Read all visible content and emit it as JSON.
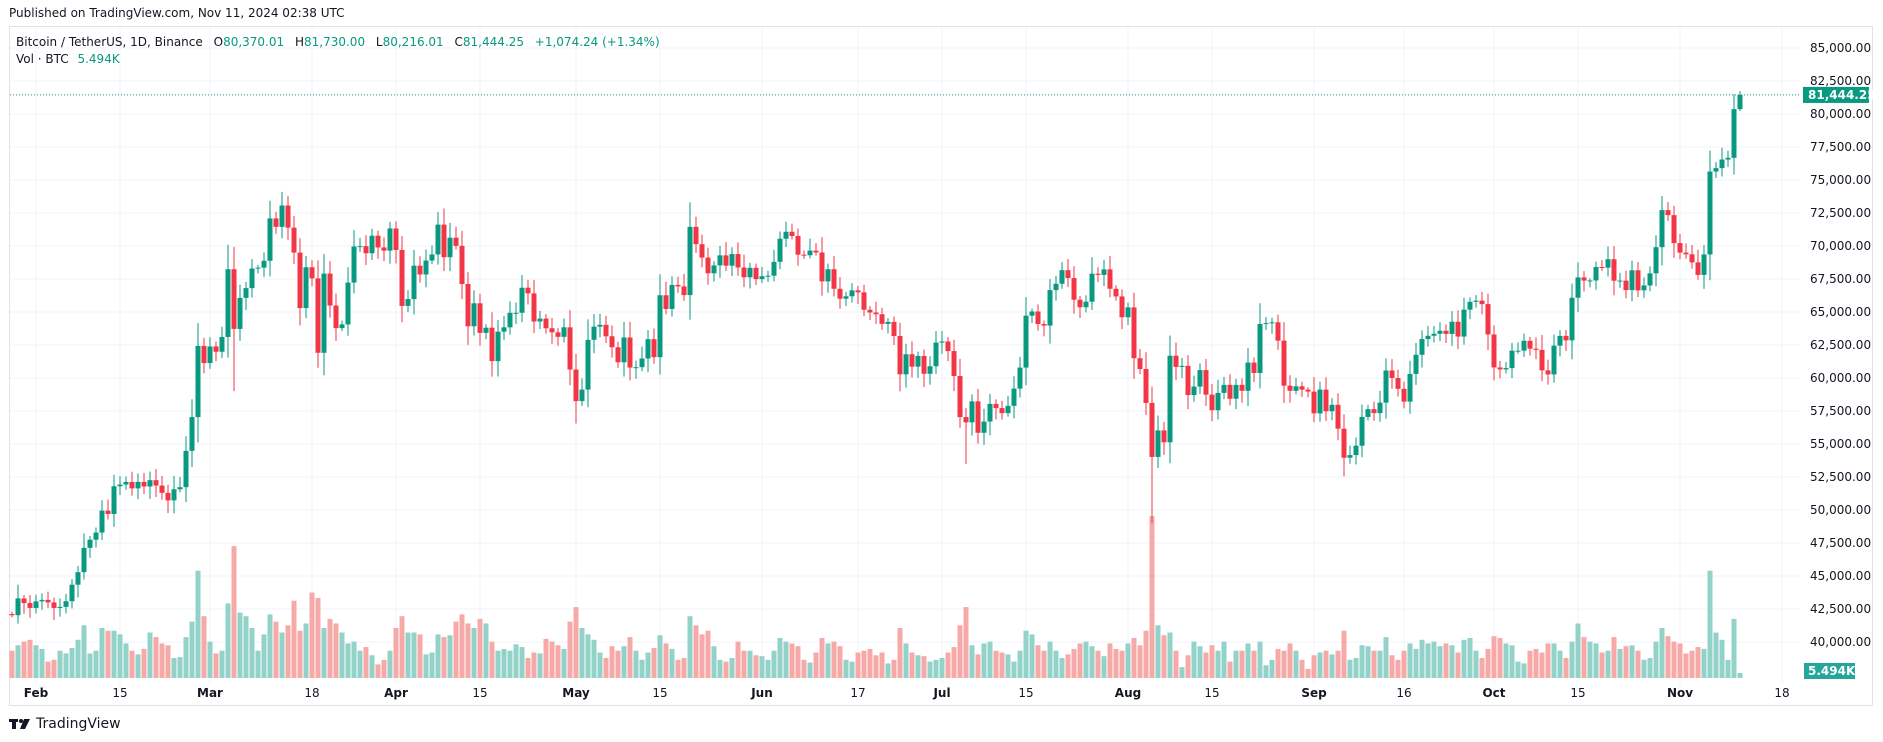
{
  "published": "Published on TradingView.com, Nov 11, 2024 02:38 UTC",
  "legend": {
    "symbol": "Bitcoin / TetherUS, 1D, Binance",
    "o_label": "O",
    "o": "80,370.01",
    "h_label": "H",
    "h": "81,730.00",
    "l_label": "L",
    "l": "80,216.01",
    "c_label": "C",
    "c": "81,444.25",
    "change": "+1,074.24 (+1.34%)"
  },
  "vol_legend": {
    "label": "Vol · BTC",
    "value": "5.494K"
  },
  "price_tag": "81,444.25",
  "volume_tag": "5.494K",
  "logo": "TradingView",
  "colors": {
    "up": "#089981",
    "down": "#F23645",
    "vol_up": "#92d2c8",
    "vol_down": "#f7a9a7",
    "grid": "#f0f3fa"
  },
  "chart_data": {
    "type": "candlestick",
    "title": "Bitcoin / TetherUS, 1D, Binance",
    "start_date": "2024-01-28",
    "end_date": "2024-11-11",
    "ylim": [
      38000,
      86000
    ],
    "y_ticks": [
      "85,000.00",
      "82,500.00",
      "80,000.00",
      "77,500.00",
      "75,000.00",
      "72,500.00",
      "70,000.00",
      "67,500.00",
      "65,000.00",
      "62,500.00",
      "60,000.00",
      "57,500.00",
      "55,000.00",
      "52,500.00",
      "50,000.00",
      "47,500.00",
      "45,000.00",
      "42,500.00",
      "40,000.00"
    ],
    "x_ticks": [
      {
        "label": "Feb",
        "day": 4,
        "month": true
      },
      {
        "label": "15",
        "day": 18
      },
      {
        "label": "Mar",
        "day": 33,
        "month": true
      },
      {
        "label": "18",
        "day": 50
      },
      {
        "label": "Apr",
        "day": 64,
        "month": true
      },
      {
        "label": "15",
        "day": 78
      },
      {
        "label": "May",
        "day": 94,
        "month": true
      },
      {
        "label": "15",
        "day": 108
      },
      {
        "label": "Jun",
        "day": 125,
        "month": true
      },
      {
        "label": "17",
        "day": 141
      },
      {
        "label": "Jul",
        "day": 155,
        "month": true
      },
      {
        "label": "15",
        "day": 169
      },
      {
        "label": "Aug",
        "day": 186,
        "month": true
      },
      {
        "label": "15",
        "day": 200
      },
      {
        "label": "Sep",
        "day": 217,
        "month": true
      },
      {
        "label": "16",
        "day": 232
      },
      {
        "label": "Oct",
        "day": 247,
        "month": true
      },
      {
        "label": "15",
        "day": 261
      },
      {
        "label": "Nov",
        "day": 278,
        "month": true
      },
      {
        "label": "18",
        "day": 295
      }
    ],
    "first_open": 42120,
    "close": [
      42030,
      43300,
      42950,
      42580,
      43080,
      43190,
      43000,
      42580,
      42660,
      43090,
      44340,
      45290,
      47130,
      47750,
      48290,
      49950,
      49700,
      51800,
      51930,
      52120,
      51640,
      52130,
      51780,
      52260,
      51850,
      51300,
      50730,
      51570,
      51730,
      54480,
      57040,
      62430,
      61130,
      62390,
      61990,
      63110,
      68240,
      63720,
      66070,
      66810,
      68290,
      68360,
      68880,
      72090,
      71450,
      73070,
      71390,
      69500,
      65300,
      68390,
      67550,
      61910,
      67910,
      65490,
      63780,
      64060,
      67230,
      69960,
      69990,
      69450,
      70780,
      69890,
      69650,
      71330,
      69700,
      65460,
      65980,
      68510,
      67840,
      68900,
      69360,
      71620,
      69150,
      70630,
      70010,
      67120,
      63920,
      65660,
      63420,
      63810,
      61280,
      63510,
      63840,
      64940,
      64940,
      66840,
      66410,
      64280,
      64500,
      63770,
      63460,
      63120,
      63840,
      60640,
      58250,
      59120,
      62890,
      63890,
      64030,
      63160,
      62330,
      61190,
      63070,
      60790,
      60820,
      61480,
      62940,
      61580,
      66270,
      65230,
      67050,
      66940,
      66280,
      71450,
      70140,
      69120,
      67930,
      68530,
      69290,
      68510,
      69390,
      68370,
      67630,
      68350,
      67490,
      67710,
      67750,
      68800,
      70550,
      71080,
      70760,
      69340,
      69300,
      69650,
      69510,
      67320,
      68240,
      66760,
      66010,
      66190,
      66640,
      66490,
      65170,
      64960,
      64830,
      64100,
      64250,
      63180,
      60280,
      61800,
      60860,
      61670,
      60320,
      60890,
      62680,
      62770,
      62040,
      60150,
      57040,
      56640,
      58230,
      55850,
      56700,
      58040,
      57720,
      57340,
      57890,
      59200,
      60790,
      64720,
      65040,
      64090,
      63970,
      66660,
      67140,
      68170,
      67570,
      65930,
      65360,
      65780,
      67900,
      67810,
      68230,
      66760,
      66180,
      64600,
      65350,
      61500,
      60680,
      58110,
      54020,
      56030,
      55130,
      61690,
      60840,
      60920,
      58710,
      59350,
      60600,
      58740,
      57560,
      58870,
      59480,
      58430,
      59480,
      59030,
      61170,
      60380,
      64090,
      64160,
      64220,
      62830,
      59420,
      59030,
      59370,
      59120,
      58970,
      57320,
      59120,
      57480,
      57970,
      56160,
      53960,
      54160,
      54870,
      57050,
      57640,
      57340,
      58130,
      60570,
      60000,
      59180,
      58210,
      60310,
      61760,
      62950,
      63200,
      63350,
      63580,
      63340,
      64260,
      63140,
      65180,
      65770,
      65860,
      65600,
      63300,
      60800,
      60650,
      60750,
      62070,
      62070,
      62820,
      62220,
      62130,
      60580,
      60270,
      62450,
      63190,
      62850,
      66080,
      67620,
      67380,
      67390,
      68410,
      68360,
      69000,
      67370,
      67380,
      66660,
      68160,
      66640,
      67010,
      67930,
      69910,
      72720,
      72340,
      70220,
      69500,
      69370,
      68760,
      67810,
      69360,
      75640,
      75900,
      76550,
      76680,
      80370,
      81444.25
    ],
    "volume_k": [
      30,
      36,
      40,
      42,
      36,
      32,
      18,
      20,
      30,
      27,
      33,
      42,
      58,
      27,
      30,
      55,
      52,
      52,
      48,
      38,
      30,
      26,
      32,
      50,
      45,
      38,
      36,
      22,
      23,
      45,
      62,
      118,
      68,
      40,
      27,
      30,
      82,
      145,
      72,
      68,
      55,
      30,
      48,
      70,
      62,
      50,
      58,
      85,
      52,
      60,
      94,
      88,
      55,
      65,
      60,
      50,
      38,
      40,
      30,
      34,
      25,
      15,
      20,
      30,
      55,
      68,
      50,
      50,
      48,
      26,
      28,
      48,
      45,
      47,
      62,
      70,
      60,
      55,
      65,
      60,
      40,
      30,
      32,
      30,
      37,
      34,
      22,
      28,
      27,
      43,
      40,
      36,
      32,
      62,
      78,
      55,
      48,
      42,
      28,
      22,
      35,
      30,
      35,
      45,
      30,
      20,
      28,
      33,
      47,
      38,
      32,
      20,
      22,
      68,
      58,
      48,
      52,
      35,
      20,
      18,
      22,
      40,
      30,
      30,
      25,
      24,
      20,
      30,
      44,
      40,
      38,
      35,
      20,
      17,
      28,
      44,
      38,
      40,
      35,
      20,
      18,
      28,
      30,
      32,
      25,
      28,
      16,
      20,
      55,
      38,
      28,
      25,
      24,
      18,
      20,
      22,
      28,
      34,
      58,
      78,
      36,
      26,
      38,
      40,
      30,
      28,
      26,
      18,
      30,
      52,
      48,
      36,
      30,
      40,
      30,
      22,
      26,
      32,
      38,
      40,
      35,
      30,
      24,
      38,
      32,
      30,
      38,
      44,
      36,
      52,
      178,
      58,
      47,
      50,
      30,
      12,
      25,
      40,
      35,
      28,
      36,
      30,
      40,
      18,
      30,
      30,
      38,
      30,
      40,
      14,
      20,
      32,
      30,
      38,
      30,
      20,
      10,
      25,
      28,
      30,
      26,
      30,
      52,
      20,
      22,
      36,
      35,
      30,
      30,
      45,
      25,
      20,
      30,
      38,
      32,
      42,
      38,
      40,
      35,
      38,
      36,
      28,
      42,
      44,
      30,
      22,
      32,
      46,
      44,
      38,
      36,
      18,
      16,
      30,
      32,
      28,
      38,
      38,
      30,
      22,
      40,
      60,
      45,
      40,
      38,
      28,
      30,
      45,
      32,
      35,
      36,
      30,
      20,
      22,
      40,
      55,
      46,
      40,
      38,
      27,
      30,
      34,
      32,
      118,
      50,
      42,
      20,
      65,
      5.494
    ],
    "extreme_overrides": [
      {
        "day": 37,
        "low": 59005
      },
      {
        "day": 46,
        "high": 73777
      },
      {
        "day": 51,
        "low": 60775
      },
      {
        "day": 94,
        "low": 56552
      },
      {
        "day": 159,
        "low": 53485
      },
      {
        "day": 190,
        "low": 49000
      },
      {
        "day": 222,
        "low": 52550
      },
      {
        "day": 288,
        "high": 81730,
        "low": 80216.01,
        "open": 80370.01
      }
    ],
    "last_price": 81444.25
  }
}
